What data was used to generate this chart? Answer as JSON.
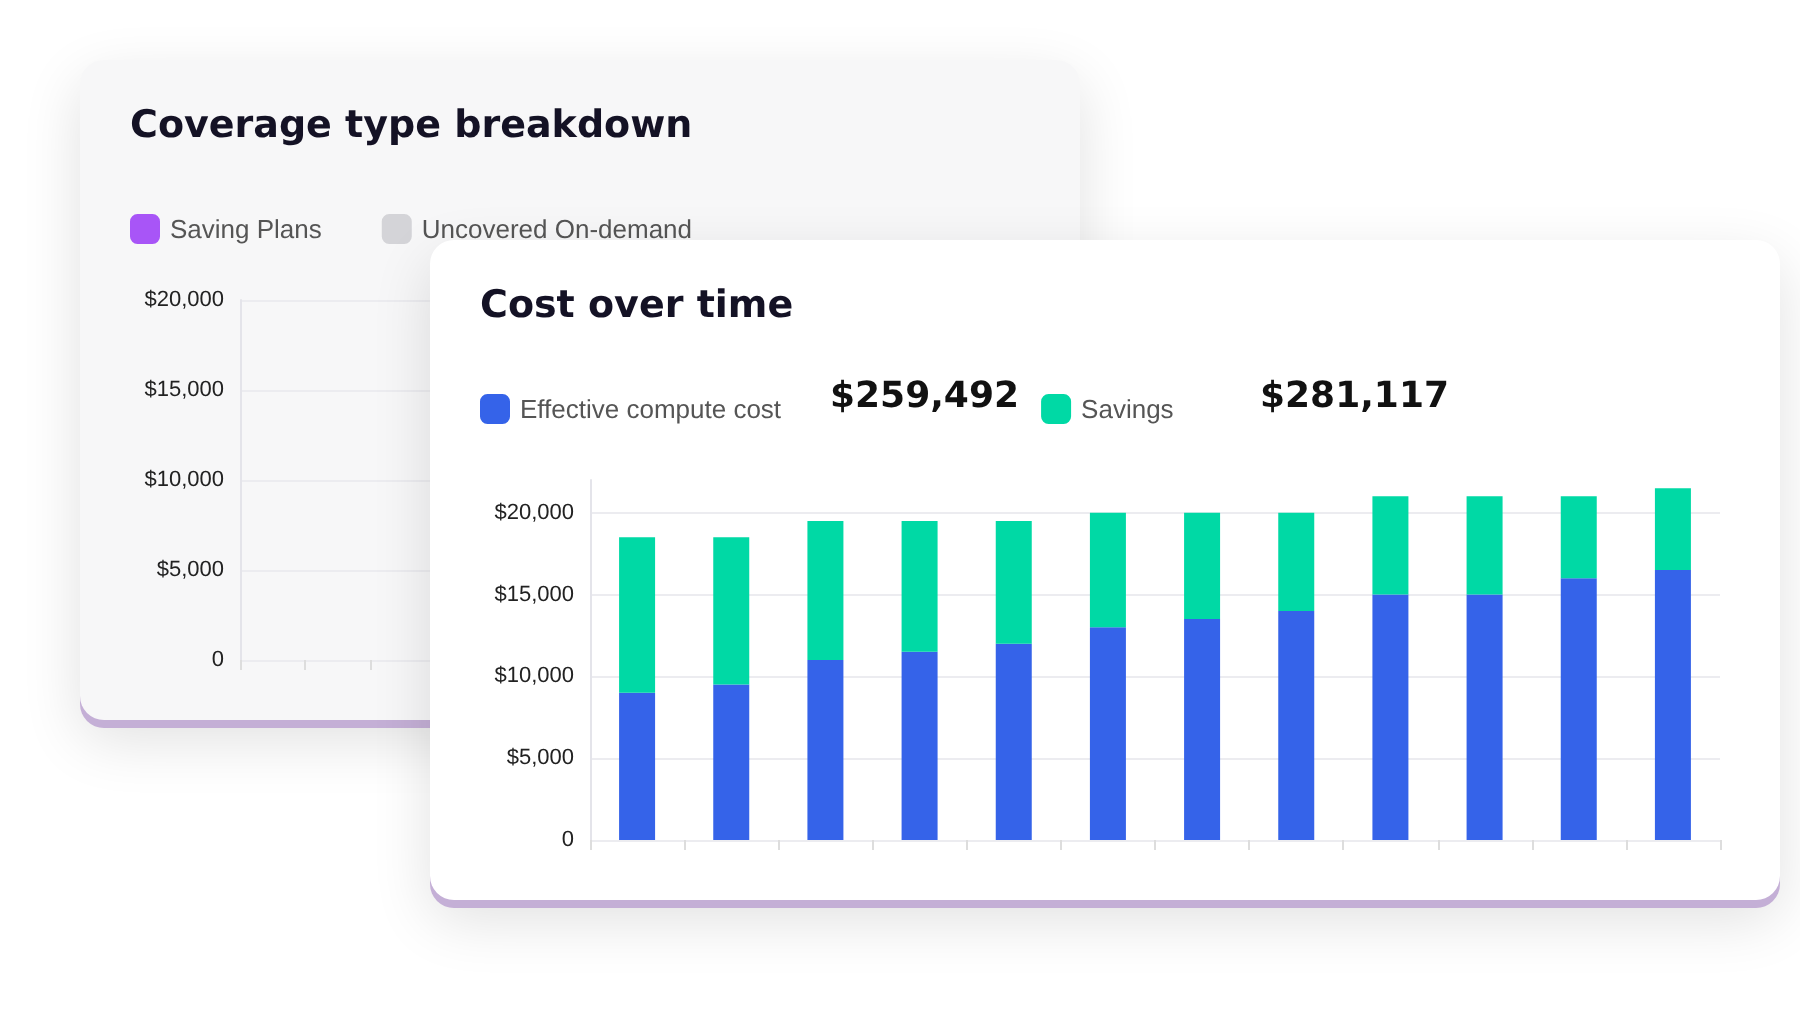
{
  "chart_data": [
    {
      "type": "bar",
      "title": "Coverage type breakdown",
      "stacked": true,
      "categories": [
        null,
        null,
        null,
        null,
        null,
        null,
        null,
        null,
        null,
        null,
        null,
        null
      ],
      "series": [
        {
          "name": "Saving Plans",
          "color": "#a855f7",
          "values": [
            null,
            null,
            null,
            null,
            null,
            null,
            null,
            null,
            null,
            null,
            null,
            null
          ]
        },
        {
          "name": "Uncovered On-demand",
          "color": "#d4d4d8",
          "values": [
            null,
            null,
            null,
            null,
            null,
            null,
            null,
            null,
            null,
            null,
            null,
            null
          ]
        }
      ],
      "ylim": [
        0,
        20000
      ],
      "yticks": [
        {
          "value": 0,
          "label": "0"
        },
        {
          "value": 5000,
          "label": "$5,000"
        },
        {
          "value": 10000,
          "label": "$10,000"
        },
        {
          "value": 15000,
          "label": "$15,000"
        },
        {
          "value": 20000,
          "label": "$20,000"
        }
      ],
      "grid": "y",
      "legend": "top left"
    },
    {
      "type": "bar",
      "title": "Cost over time",
      "stacked": true,
      "categories": [
        null,
        null,
        null,
        null,
        null,
        null,
        null,
        null,
        null,
        null,
        null,
        null
      ],
      "series": [
        {
          "name": "Effective compute cost",
          "color": "#3563e9",
          "values": [
            9000,
            9500,
            11000,
            11500,
            12000,
            13000,
            13500,
            14000,
            15000,
            15000,
            16000,
            16500
          ]
        },
        {
          "name": "Savings",
          "color": "#00d9a5",
          "values": [
            9500,
            9000,
            8500,
            8000,
            7500,
            7000,
            6500,
            6000,
            6000,
            6000,
            5000,
            5000
          ]
        }
      ],
      "ylim": [
        0,
        22000
      ],
      "yticks": [
        {
          "value": 0,
          "label": "0"
        },
        {
          "value": 5000,
          "label": "$5,000"
        },
        {
          "value": 10000,
          "label": "$10,000"
        },
        {
          "value": 15000,
          "label": "$15,000"
        },
        {
          "value": 20000,
          "label": "$20,000"
        }
      ],
      "grid": "y",
      "legend": "top left",
      "annotations": [
        "$259,492",
        "$281,117"
      ]
    }
  ]
}
